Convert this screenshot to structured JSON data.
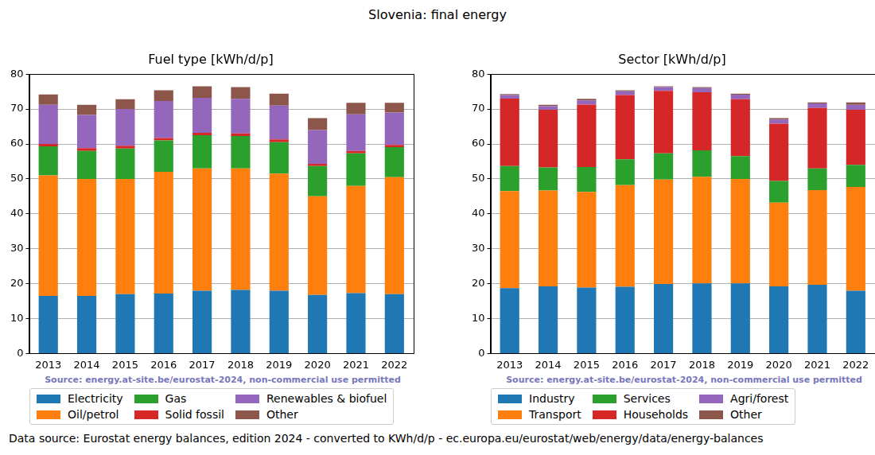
{
  "title": "Slovenia: final energy",
  "source_note": "Data source: Eurostat energy balances, edition 2024 - converted to KWh/d/p - ec.europa.eu/eurostat/web/energy/data/energy-balances",
  "chart_data": [
    {
      "type": "bar",
      "title": "Fuel type [kWh/d/p]",
      "annotation": "Source: energy.at-site.be/eurostat-2024, non-commercial use permitted",
      "stacked": true,
      "grid": true,
      "legend": "bottom",
      "categories": [
        "2013",
        "2014",
        "2015",
        "2016",
        "2017",
        "2018",
        "2019",
        "2020",
        "2021",
        "2022"
      ],
      "ylim": [
        0,
        80
      ],
      "yticks": [
        0,
        10,
        20,
        30,
        40,
        50,
        60,
        70,
        80
      ],
      "series": [
        {
          "name": "Electricity",
          "color": "#1f77b4",
          "values": [
            16.5,
            16.5,
            17.0,
            17.2,
            18.0,
            18.2,
            18.0,
            16.8,
            17.3,
            17.0
          ]
        },
        {
          "name": "Oil/petrol",
          "color": "#ff7f0e",
          "values": [
            34.5,
            33.5,
            33.0,
            34.8,
            35.0,
            34.8,
            33.5,
            28.2,
            30.7,
            33.5
          ]
        },
        {
          "name": "Gas",
          "color": "#2ca02c",
          "values": [
            8.3,
            8.0,
            8.7,
            9.0,
            9.5,
            9.3,
            9.0,
            8.7,
            9.3,
            8.6
          ]
        },
        {
          "name": "Solid fossil",
          "color": "#d62728",
          "values": [
            0.7,
            0.8,
            0.8,
            0.7,
            0.7,
            0.7,
            0.8,
            0.6,
            0.7,
            0.6
          ]
        },
        {
          "name": "Renewables & biofuel",
          "color": "#9467bd",
          "values": [
            11.2,
            9.5,
            10.5,
            10.6,
            10.0,
            9.9,
            9.7,
            9.7,
            10.5,
            9.3
          ]
        },
        {
          "name": "Other",
          "color": "#8c564b",
          "values": [
            3.0,
            2.9,
            2.8,
            3.1,
            3.3,
            3.4,
            3.4,
            3.4,
            3.3,
            2.8
          ]
        }
      ]
    },
    {
      "type": "bar",
      "title": "Sector [kWh/d/p]",
      "annotation": "Source: energy.at-site.be/eurostat-2024, non-commercial use permitted",
      "stacked": true,
      "grid": true,
      "legend": "bottom",
      "categories": [
        "2013",
        "2014",
        "2015",
        "2016",
        "2017",
        "2018",
        "2019",
        "2020",
        "2021",
        "2022"
      ],
      "ylim": [
        0,
        80
      ],
      "yticks": [
        0,
        10,
        20,
        30,
        40,
        50,
        60,
        70,
        80
      ],
      "series": [
        {
          "name": "Industry",
          "color": "#1f77b4",
          "values": [
            18.7,
            19.2,
            18.9,
            19.1,
            19.9,
            20.1,
            20.1,
            19.2,
            19.7,
            18.0
          ]
        },
        {
          "name": "Transport",
          "color": "#ff7f0e",
          "values": [
            27.8,
            27.5,
            27.4,
            29.1,
            29.9,
            30.5,
            29.9,
            24.0,
            27.1,
            29.7
          ]
        },
        {
          "name": "Services",
          "color": "#2ca02c",
          "values": [
            7.2,
            6.6,
            7.1,
            7.4,
            7.5,
            7.6,
            6.5,
            6.2,
            6.2,
            6.3
          ]
        },
        {
          "name": "Households",
          "color": "#d62728",
          "values": [
            19.3,
            16.5,
            17.9,
            18.4,
            17.9,
            16.6,
            16.3,
            16.4,
            17.3,
            15.8
          ]
        },
        {
          "name": "Agri/forest",
          "color": "#9467bd",
          "values": [
            1.0,
            1.0,
            1.2,
            1.1,
            1.1,
            1.2,
            1.3,
            1.2,
            1.3,
            1.4
          ]
        },
        {
          "name": "Other",
          "color": "#8c564b",
          "values": [
            0.3,
            0.4,
            0.4,
            0.3,
            0.2,
            0.3,
            0.3,
            0.4,
            0.3,
            0.7
          ]
        }
      ]
    }
  ]
}
